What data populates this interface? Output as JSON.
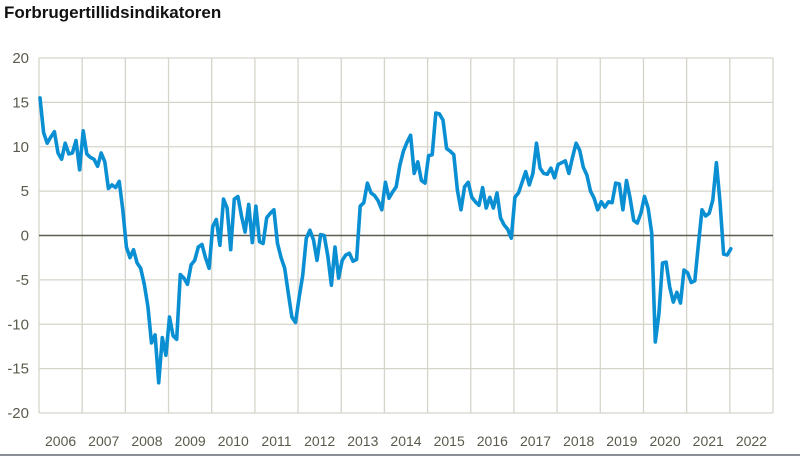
{
  "chart_data": {
    "type": "line",
    "title": "Forbrugertillidsindikatoren",
    "xlabel": "",
    "ylabel": "",
    "ylim": [
      -20,
      20
    ],
    "yticks": [
      "20",
      "15",
      "10",
      "5",
      "0",
      "-5",
      "-10",
      "-15",
      "-20"
    ],
    "xticks": [
      "2006",
      "2007",
      "2008",
      "2009",
      "2010",
      "2011",
      "2012",
      "2013",
      "2014",
      "2015",
      "2016",
      "2017",
      "2018",
      "2019",
      "2020",
      "2021",
      "2022"
    ],
    "x_start": "2006-01",
    "x_frequency": "monthly",
    "grid": true,
    "legend": "none",
    "line_color": "#0a8fd3",
    "series": [
      {
        "values": [
          15.5,
          11.6,
          10.4,
          11.1,
          11.7,
          9.3,
          8.6,
          10.4,
          9.2,
          9.3,
          10.7,
          7.4,
          11.8,
          9.2,
          8.8,
          8.6,
          7.8,
          9.3,
          8.3,
          5.3,
          5.7,
          5.4,
          6.1,
          2.9,
          -1.3,
          -2.5,
          -1.6,
          -3.1,
          -3.7,
          -5.5,
          -8.0,
          -12.1,
          -11.2,
          -16.6,
          -11.5,
          -13.5,
          -9.2,
          -11.3,
          -11.7,
          -4.4,
          -4.8,
          -5.5,
          -3.3,
          -2.8,
          -1.3,
          -1.0,
          -2.5,
          -3.7,
          1.0,
          1.8,
          -1.1,
          4.1,
          3.1,
          -1.6,
          4.1,
          4.4,
          2.2,
          0.4,
          3.5,
          -0.8,
          3.3,
          -0.7,
          -0.9,
          2.0,
          2.5,
          2.9,
          -0.9,
          -2.5,
          -3.7,
          -6.5,
          -9.2,
          -9.8,
          -7.0,
          -4.5,
          -0.3,
          0.6,
          -0.5,
          -2.8,
          0.1,
          0.0,
          -2.3,
          -5.6,
          -1.3,
          -4.8,
          -2.8,
          -2.2,
          -2.0,
          -2.9,
          -2.7,
          3.3,
          3.7,
          5.9,
          4.8,
          4.5,
          3.9,
          2.9,
          6.0,
          4.2,
          4.9,
          5.5,
          7.9,
          9.5,
          10.5,
          11.3,
          7.0,
          8.3,
          6.2,
          5.9,
          9.0,
          9.1,
          13.8,
          13.7,
          13.0,
          9.8,
          9.5,
          9.1,
          5.1,
          2.9,
          5.5,
          6.0,
          4.3,
          3.8,
          3.4,
          5.4,
          3.1,
          4.3,
          3.1,
          4.8,
          2.0,
          1.2,
          0.7,
          -0.3,
          4.3,
          4.8,
          6.0,
          7.2,
          5.7,
          7.0,
          10.4,
          7.6,
          7.0,
          6.9,
          7.6,
          6.5,
          8.0,
          8.2,
          8.4,
          7.0,
          8.8,
          10.4,
          9.6,
          7.7,
          6.8,
          5.0,
          4.2,
          2.9,
          3.8,
          3.2,
          3.8,
          3.7,
          5.9,
          5.8,
          2.9,
          6.2,
          4.2,
          1.7,
          1.4,
          2.5,
          4.4,
          3.1,
          0.3,
          -12.0,
          -8.8,
          -3.1,
          -3.0,
          -5.8,
          -7.5,
          -6.4,
          -7.6,
          -3.9,
          -4.2,
          -5.3,
          -5.1,
          -1.0,
          2.9,
          2.2,
          2.5,
          4.0,
          8.2,
          3.8,
          -2.1,
          -2.2,
          -1.5
        ]
      }
    ]
  }
}
